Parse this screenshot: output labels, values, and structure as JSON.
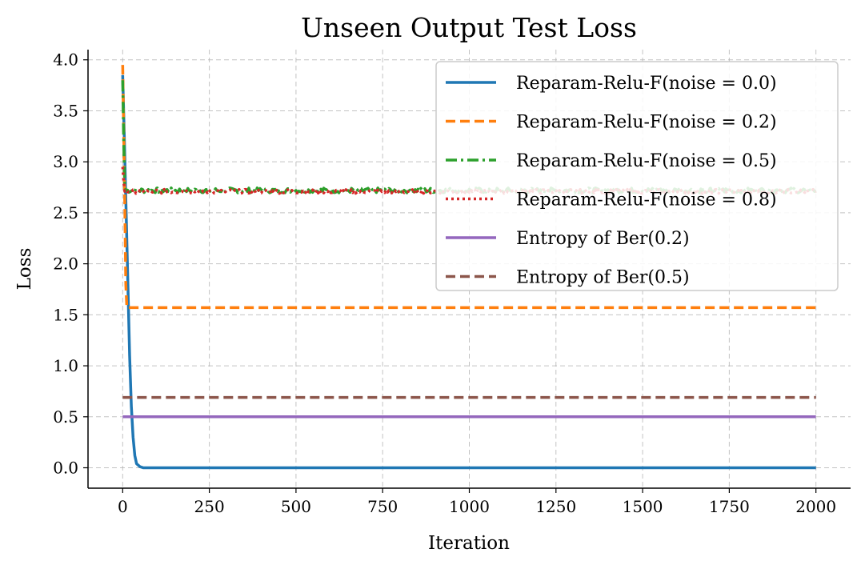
{
  "chart_data": {
    "type": "line",
    "title": "Unseen Output Test Loss",
    "xlabel": "Iteration",
    "ylabel": "Loss",
    "xlim": [
      -100,
      2100
    ],
    "ylim": [
      -0.2,
      4.1
    ],
    "xticks": [
      0,
      250,
      500,
      750,
      1000,
      1250,
      1500,
      1750,
      2000
    ],
    "yticks": [
      0.0,
      0.5,
      1.0,
      1.5,
      2.0,
      2.5,
      3.0,
      3.5,
      4.0
    ],
    "xtick_labels": [
      "0",
      "250",
      "500",
      "750",
      "1000",
      "1250",
      "1500",
      "1750",
      "2000"
    ],
    "ytick_labels": [
      "0.0",
      "0.5",
      "1.0",
      "1.5",
      "2.0",
      "2.5",
      "3.0",
      "3.5",
      "4.0"
    ],
    "grid": true,
    "legend_position": "top-right",
    "series": [
      {
        "name": "Reparam-Relu-F(noise = 0.0)",
        "color": "#1f77b4",
        "style": "solid",
        "x": [
          0,
          5,
          10,
          15,
          20,
          25,
          30,
          35,
          40,
          50,
          60,
          100,
          500,
          1000,
          1500,
          2000
        ],
        "y": [
          3.85,
          3.2,
          2.5,
          1.8,
          1.1,
          0.6,
          0.3,
          0.12,
          0.04,
          0.01,
          0.0,
          0.0,
          0.0,
          0.0,
          0.0,
          0.0
        ]
      },
      {
        "name": "Reparam-Relu-F(noise = 0.2)",
        "color": "#ff7f0e",
        "style": "dashed",
        "x": [
          0,
          3,
          6,
          9,
          12,
          100,
          500,
          1000,
          1500,
          2000
        ],
        "y": [
          3.95,
          3.3,
          2.6,
          1.8,
          1.57,
          1.57,
          1.57,
          1.57,
          1.57,
          1.57
        ]
      },
      {
        "name": "Reparam-Relu-F(noise = 0.5)",
        "color": "#2ca02c",
        "style": "dashdot",
        "x": [
          0,
          3,
          6,
          10,
          100,
          500,
          1000,
          1500,
          2000
        ],
        "y": [
          3.8,
          3.2,
          2.75,
          2.72,
          2.72,
          2.72,
          2.72,
          2.72,
          2.72
        ],
        "noise": 0.025
      },
      {
        "name": "Reparam-Relu-F(noise = 0.8)",
        "color": "#d62728",
        "style": "dotted",
        "x": [
          0,
          3,
          6,
          10,
          100,
          500,
          1000,
          1500,
          2000
        ],
        "y": [
          2.95,
          2.8,
          2.71,
          2.71,
          2.71,
          2.71,
          2.71,
          2.71,
          2.71
        ],
        "noise": 0.02
      },
      {
        "name": "Entropy of Ber(0.2)",
        "color": "#9467bd",
        "style": "solid",
        "x": [
          0,
          2000
        ],
        "y": [
          0.5,
          0.5
        ]
      },
      {
        "name": "Entropy of Ber(0.5)",
        "color": "#8c564b",
        "style": "dashed",
        "x": [
          0,
          2000
        ],
        "y": [
          0.69,
          0.69
        ]
      }
    ]
  }
}
